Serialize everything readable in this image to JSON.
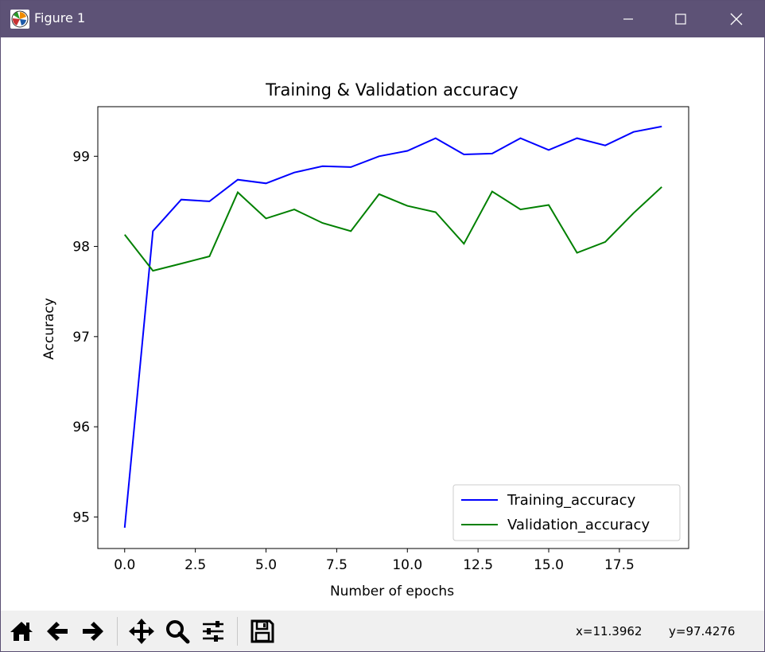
{
  "window": {
    "title": "Figure 1",
    "titlebar_color": "#5d5276",
    "buttons": [
      "minimize-icon",
      "maximize-icon",
      "close-icon"
    ]
  },
  "chart_data": {
    "type": "line",
    "title": "Training & Validation accuracy",
    "xlabel": "Number of epochs",
    "ylabel": "Accuracy",
    "xlim": [
      -0.95,
      19.95
    ],
    "ylim": [
      94.65,
      99.55
    ],
    "xticks": [
      0.0,
      2.5,
      5.0,
      7.5,
      10.0,
      12.5,
      15.0,
      17.5
    ],
    "xtick_labels": [
      "0.0",
      "2.5",
      "5.0",
      "7.5",
      "10.0",
      "12.5",
      "15.0",
      "17.5"
    ],
    "yticks": [
      95,
      96,
      97,
      98,
      99
    ],
    "ytick_labels": [
      "95",
      "96",
      "97",
      "98",
      "99"
    ],
    "grid": false,
    "legend_position": "lower-right",
    "x": [
      0,
      1,
      2,
      3,
      4,
      5,
      6,
      7,
      8,
      9,
      10,
      11,
      12,
      13,
      14,
      15,
      16,
      17,
      18,
      19
    ],
    "series": [
      {
        "name": "Training_accuracy",
        "color": "#0000ff",
        "values": [
          94.88,
          98.17,
          98.52,
          98.5,
          98.74,
          98.7,
          98.82,
          98.89,
          98.88,
          99.0,
          99.06,
          99.2,
          99.02,
          99.03,
          99.2,
          99.07,
          99.2,
          99.12,
          99.27,
          99.33
        ]
      },
      {
        "name": "Validation_accuracy",
        "color": "#008000",
        "values": [
          98.13,
          97.73,
          97.81,
          97.89,
          98.6,
          98.31,
          98.41,
          98.26,
          98.17,
          98.58,
          98.45,
          98.38,
          98.03,
          98.61,
          98.41,
          98.46,
          97.93,
          98.05,
          98.37,
          98.66
        ]
      }
    ]
  },
  "toolbar": {
    "tools": [
      "home-icon",
      "back-icon",
      "forward-icon",
      "pan-icon",
      "zoom-icon",
      "configure-subplots-icon",
      "save-icon"
    ],
    "x_readout": "x=11.3962",
    "y_readout": "y=97.4276"
  }
}
